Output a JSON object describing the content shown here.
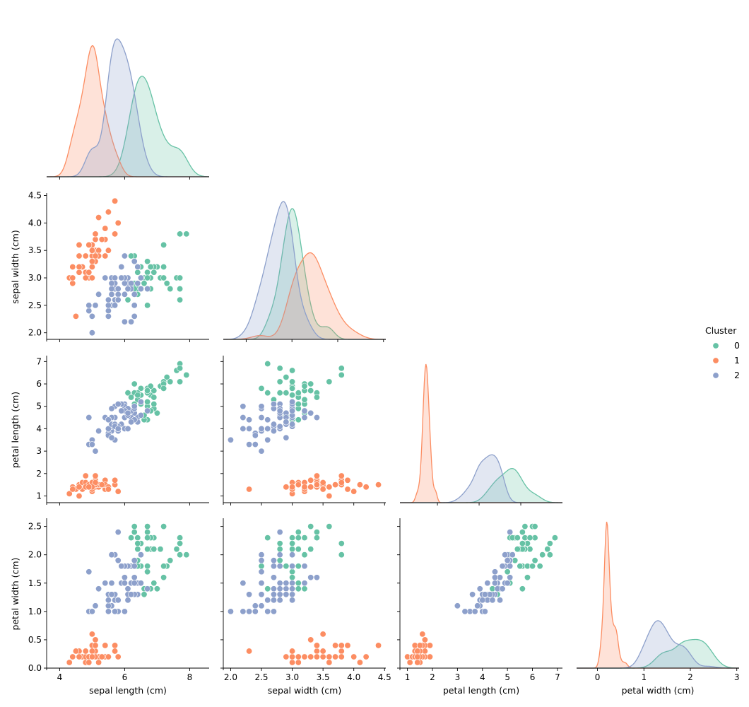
{
  "chart_data": {
    "type": "scatter",
    "subtype": "pairplot-corner",
    "hue": "Cluster",
    "variables": [
      "sepal length (cm)",
      "sepal width (cm)",
      "petal length (cm)",
      "petal width (cm)"
    ],
    "diag_kind": "kde",
    "grid": false,
    "legend": {
      "title": "Cluster",
      "placement": "center-right",
      "entries": [
        "0",
        "1",
        "2"
      ]
    },
    "colors": {
      "0": "#66c2a5",
      "1": "#fc8d62",
      "2": "#8da0cb"
    },
    "axes": {
      "sepal length (cm)": {
        "range": [
          3.6,
          8.6
        ],
        "ticks": [
          "4",
          "6",
          "8"
        ]
      },
      "sepal width (cm)": {
        "range": [
          1.88,
          4.52
        ],
        "ticks": [
          "2.0",
          "2.5",
          "3.0",
          "3.5",
          "4.0",
          "4.5"
        ],
        "diag_ticks": [
          "2",
          "3",
          "4",
          "5"
        ],
        "diag_range": [
          1.5,
          5.05
        ]
      },
      "petal length (cm)": {
        "range": [
          0.7,
          7.2
        ],
        "ticks": [
          "1",
          "2",
          "3",
          "4",
          "5",
          "6",
          "7"
        ],
        "diag_ticks": [
          "2",
          "4",
          "6"
        ],
        "diag_range": [
          0.2,
          8.0
        ]
      },
      "petal width (cm)": {
        "range": [
          0.0,
          2.62
        ],
        "ticks": [
          "0.0",
          "0.5",
          "1.0",
          "1.5",
          "2.0",
          "2.5"
        ],
        "diag_ticks": [
          "0",
          "1",
          "2",
          "3"
        ],
        "diag_range": [
          -0.45,
          3.05
        ]
      }
    },
    "series": [
      {
        "name": "0",
        "points": [
          [
            7.0,
            3.2,
            4.7,
            1.4
          ],
          [
            6.9,
            3.1,
            4.9,
            1.5
          ],
          [
            6.7,
            3.1,
            4.4,
            1.4
          ],
          [
            6.6,
            3.0,
            4.4,
            1.4
          ],
          [
            6.8,
            2.8,
            4.8,
            1.4
          ],
          [
            6.7,
            3.0,
            5.0,
            1.7
          ],
          [
            6.3,
            3.3,
            6.0,
            2.5
          ],
          [
            7.1,
            3.0,
            5.9,
            2.1
          ],
          [
            6.3,
            2.9,
            5.6,
            1.8
          ],
          [
            6.5,
            3.0,
            5.8,
            2.2
          ],
          [
            7.6,
            3.0,
            6.6,
            2.1
          ],
          [
            7.3,
            2.9,
            6.3,
            1.8
          ],
          [
            6.7,
            2.5,
            5.8,
            1.8
          ],
          [
            7.2,
            3.6,
            6.1,
            2.5
          ],
          [
            6.5,
            3.2,
            5.1,
            2.0
          ],
          [
            6.4,
            2.7,
            5.3,
            1.9
          ],
          [
            6.8,
            3.0,
            5.5,
            2.1
          ],
          [
            6.4,
            3.2,
            5.3,
            2.3
          ],
          [
            6.5,
            3.0,
            5.5,
            1.8
          ],
          [
            7.7,
            3.8,
            6.7,
            2.2
          ],
          [
            7.7,
            2.6,
            6.9,
            2.3
          ],
          [
            6.9,
            3.2,
            5.7,
            2.3
          ],
          [
            7.7,
            2.8,
            6.7,
            2.0
          ],
          [
            6.7,
            3.3,
            5.7,
            2.1
          ],
          [
            7.2,
            3.2,
            6.0,
            1.8
          ],
          [
            6.4,
            2.8,
            5.6,
            2.1
          ],
          [
            7.2,
            3.0,
            5.8,
            1.6
          ],
          [
            7.4,
            2.8,
            6.1,
            1.9
          ],
          [
            7.9,
            3.8,
            6.4,
            2.0
          ],
          [
            6.4,
            2.8,
            5.6,
            2.2
          ],
          [
            6.1,
            2.6,
            5.6,
            1.4
          ],
          [
            7.7,
            3.0,
            6.1,
            2.3
          ],
          [
            6.3,
            3.4,
            5.6,
            2.4
          ],
          [
            6.4,
            3.1,
            5.5,
            1.8
          ],
          [
            6.9,
            3.1,
            5.4,
            2.1
          ],
          [
            6.7,
            3.1,
            5.6,
            2.4
          ],
          [
            6.9,
            3.1,
            5.1,
            2.3
          ],
          [
            6.8,
            3.2,
            5.9,
            2.3
          ],
          [
            6.7,
            3.3,
            5.7,
            2.5
          ],
          [
            6.7,
            3.0,
            5.2,
            2.3
          ],
          [
            6.5,
            3.0,
            5.2,
            2.0
          ],
          [
            6.2,
            3.4,
            5.4,
            2.3
          ],
          [
            6.3,
            2.5,
            5.0,
            1.9
          ],
          [
            6.6,
            2.9,
            4.6,
            1.3
          ],
          [
            6.1,
            3.0,
            4.9,
            1.8
          ],
          [
            6.4,
            2.9,
            4.3,
            1.3
          ],
          [
            6.3,
            2.8,
            5.1,
            1.5
          ],
          [
            6.0,
            3.0,
            4.8,
            1.8
          ],
          [
            6.5,
            2.8,
            4.6,
            1.5
          ],
          [
            6.2,
            2.8,
            4.8,
            1.8
          ]
        ]
      },
      {
        "name": "1",
        "points": [
          [
            5.1,
            3.5,
            1.4,
            0.2
          ],
          [
            4.9,
            3.0,
            1.4,
            0.2
          ],
          [
            4.7,
            3.2,
            1.3,
            0.2
          ],
          [
            4.6,
            3.1,
            1.5,
            0.2
          ],
          [
            5.0,
            3.6,
            1.4,
            0.2
          ],
          [
            5.4,
            3.9,
            1.7,
            0.4
          ],
          [
            4.6,
            3.4,
            1.4,
            0.3
          ],
          [
            5.0,
            3.4,
            1.5,
            0.2
          ],
          [
            4.4,
            2.9,
            1.4,
            0.2
          ],
          [
            4.9,
            3.1,
            1.5,
            0.1
          ],
          [
            5.4,
            3.7,
            1.5,
            0.2
          ],
          [
            4.8,
            3.4,
            1.6,
            0.2
          ],
          [
            4.8,
            3.0,
            1.4,
            0.1
          ],
          [
            4.3,
            3.0,
            1.1,
            0.1
          ],
          [
            5.8,
            4.0,
            1.2,
            0.2
          ],
          [
            5.7,
            4.4,
            1.5,
            0.4
          ],
          [
            5.4,
            3.9,
            1.3,
            0.4
          ],
          [
            5.1,
            3.5,
            1.4,
            0.3
          ],
          [
            5.7,
            3.8,
            1.7,
            0.3
          ],
          [
            5.1,
            3.8,
            1.5,
            0.3
          ],
          [
            5.4,
            3.4,
            1.7,
            0.2
          ],
          [
            5.1,
            3.7,
            1.5,
            0.4
          ],
          [
            4.6,
            3.6,
            1.0,
            0.2
          ],
          [
            5.1,
            3.3,
            1.7,
            0.5
          ],
          [
            4.8,
            3.4,
            1.9,
            0.2
          ],
          [
            5.0,
            3.0,
            1.6,
            0.2
          ],
          [
            5.0,
            3.4,
            1.6,
            0.4
          ],
          [
            5.2,
            3.5,
            1.5,
            0.2
          ],
          [
            5.2,
            3.4,
            1.4,
            0.2
          ],
          [
            4.7,
            3.2,
            1.6,
            0.2
          ],
          [
            4.8,
            3.1,
            1.6,
            0.2
          ],
          [
            5.4,
            3.4,
            1.5,
            0.4
          ],
          [
            5.2,
            4.1,
            1.5,
            0.1
          ],
          [
            5.5,
            4.2,
            1.4,
            0.2
          ],
          [
            4.9,
            3.1,
            1.5,
            0.2
          ],
          [
            5.0,
            3.2,
            1.2,
            0.2
          ],
          [
            5.5,
            3.5,
            1.3,
            0.2
          ],
          [
            4.4,
            3.0,
            1.3,
            0.2
          ],
          [
            5.1,
            3.4,
            1.5,
            0.2
          ],
          [
            5.0,
            3.5,
            1.3,
            0.3
          ],
          [
            4.5,
            2.3,
            1.3,
            0.3
          ],
          [
            4.4,
            3.2,
            1.3,
            0.2
          ],
          [
            5.0,
            3.5,
            1.6,
            0.6
          ],
          [
            5.1,
            3.8,
            1.9,
            0.4
          ],
          [
            4.8,
            3.0,
            1.4,
            0.3
          ],
          [
            5.1,
            3.8,
            1.6,
            0.2
          ],
          [
            4.6,
            3.2,
            1.4,
            0.2
          ],
          [
            5.3,
            3.7,
            1.5,
            0.2
          ],
          [
            5.0,
            3.3,
            1.4,
            0.2
          ],
          [
            4.9,
            3.6,
            1.4,
            0.1
          ]
        ]
      },
      {
        "name": "2",
        "points": [
          [
            6.4,
            3.2,
            4.5,
            1.5
          ],
          [
            5.5,
            2.3,
            4.0,
            1.3
          ],
          [
            6.5,
            2.8,
            4.6,
            1.5
          ],
          [
            5.7,
            2.8,
            4.5,
            1.3
          ],
          [
            6.3,
            3.3,
            4.7,
            1.6
          ],
          [
            4.9,
            2.4,
            3.3,
            1.0
          ],
          [
            5.2,
            2.7,
            3.9,
            1.4
          ],
          [
            5.0,
            2.0,
            3.5,
            1.0
          ],
          [
            5.9,
            3.0,
            4.2,
            1.5
          ],
          [
            6.0,
            2.2,
            4.0,
            1.0
          ],
          [
            6.1,
            2.9,
            4.7,
            1.4
          ],
          [
            5.6,
            2.9,
            3.6,
            1.3
          ],
          [
            5.6,
            3.0,
            4.5,
            1.5
          ],
          [
            5.8,
            2.7,
            4.1,
            1.0
          ],
          [
            6.2,
            2.2,
            4.5,
            1.5
          ],
          [
            5.6,
            2.5,
            3.9,
            1.1
          ],
          [
            5.9,
            3.2,
            4.8,
            1.8
          ],
          [
            6.1,
            2.8,
            4.0,
            1.3
          ],
          [
            6.3,
            2.5,
            4.9,
            1.5
          ],
          [
            6.1,
            2.8,
            4.7,
            1.2
          ],
          [
            6.4,
            2.9,
            4.3,
            1.3
          ],
          [
            6.0,
            2.9,
            4.5,
            1.5
          ],
          [
            5.7,
            2.6,
            3.5,
            1.0
          ],
          [
            5.5,
            2.4,
            3.8,
            1.1
          ],
          [
            5.5,
            2.4,
            3.7,
            1.0
          ],
          [
            5.8,
            2.7,
            3.9,
            1.2
          ],
          [
            6.0,
            2.7,
            5.1,
            1.6
          ],
          [
            5.4,
            3.0,
            4.5,
            1.5
          ],
          [
            6.0,
            3.4,
            4.5,
            1.6
          ],
          [
            6.3,
            2.3,
            4.4,
            1.3
          ],
          [
            5.6,
            3.0,
            4.1,
            1.3
          ],
          [
            5.5,
            2.5,
            4.0,
            1.3
          ],
          [
            5.5,
            2.6,
            4.4,
            1.2
          ],
          [
            6.1,
            3.0,
            4.6,
            1.4
          ],
          [
            5.8,
            2.6,
            4.0,
            1.2
          ],
          [
            5.0,
            2.3,
            3.3,
            1.0
          ],
          [
            5.6,
            2.7,
            4.2,
            1.3
          ],
          [
            5.7,
            3.0,
            4.2,
            1.2
          ],
          [
            5.7,
            2.9,
            4.2,
            1.3
          ],
          [
            6.2,
            2.9,
            4.3,
            1.3
          ],
          [
            5.1,
            2.5,
            3.0,
            1.1
          ],
          [
            5.7,
            2.8,
            4.1,
            1.3
          ],
          [
            5.8,
            2.7,
            5.1,
            1.9
          ],
          [
            4.9,
            2.5,
            4.5,
            1.7
          ],
          [
            5.7,
            2.5,
            5.0,
            2.0
          ],
          [
            5.8,
            2.8,
            5.1,
            2.4
          ],
          [
            6.0,
            2.2,
            5.0,
            1.5
          ],
          [
            5.6,
            2.8,
            4.9,
            2.0
          ],
          [
            6.2,
            2.8,
            4.8,
            1.8
          ],
          [
            6.1,
            3.0,
            4.9,
            1.8
          ],
          [
            6.3,
            2.7,
            4.9,
            1.8
          ],
          [
            6.0,
            3.0,
            4.8,
            1.8
          ],
          [
            5.9,
            3.0,
            5.1,
            1.8
          ],
          [
            5.8,
            2.7,
            5.1,
            1.9
          ],
          [
            6.3,
            2.5,
            5.0,
            1.9
          ],
          [
            6.5,
            3.0,
            5.2,
            2.0
          ],
          [
            5.8,
            2.6,
            4.0,
            1.2
          ],
          [
            5.5,
            2.6,
            4.4,
            1.2
          ],
          [
            6.1,
            2.8,
            4.7,
            1.2
          ],
          [
            5.9,
            3.2,
            4.8,
            1.8
          ],
          [
            5.6,
            2.9,
            3.6,
            1.3
          ],
          [
            6.7,
            2.8,
            4.8,
            1.4
          ]
        ]
      }
    ]
  }
}
